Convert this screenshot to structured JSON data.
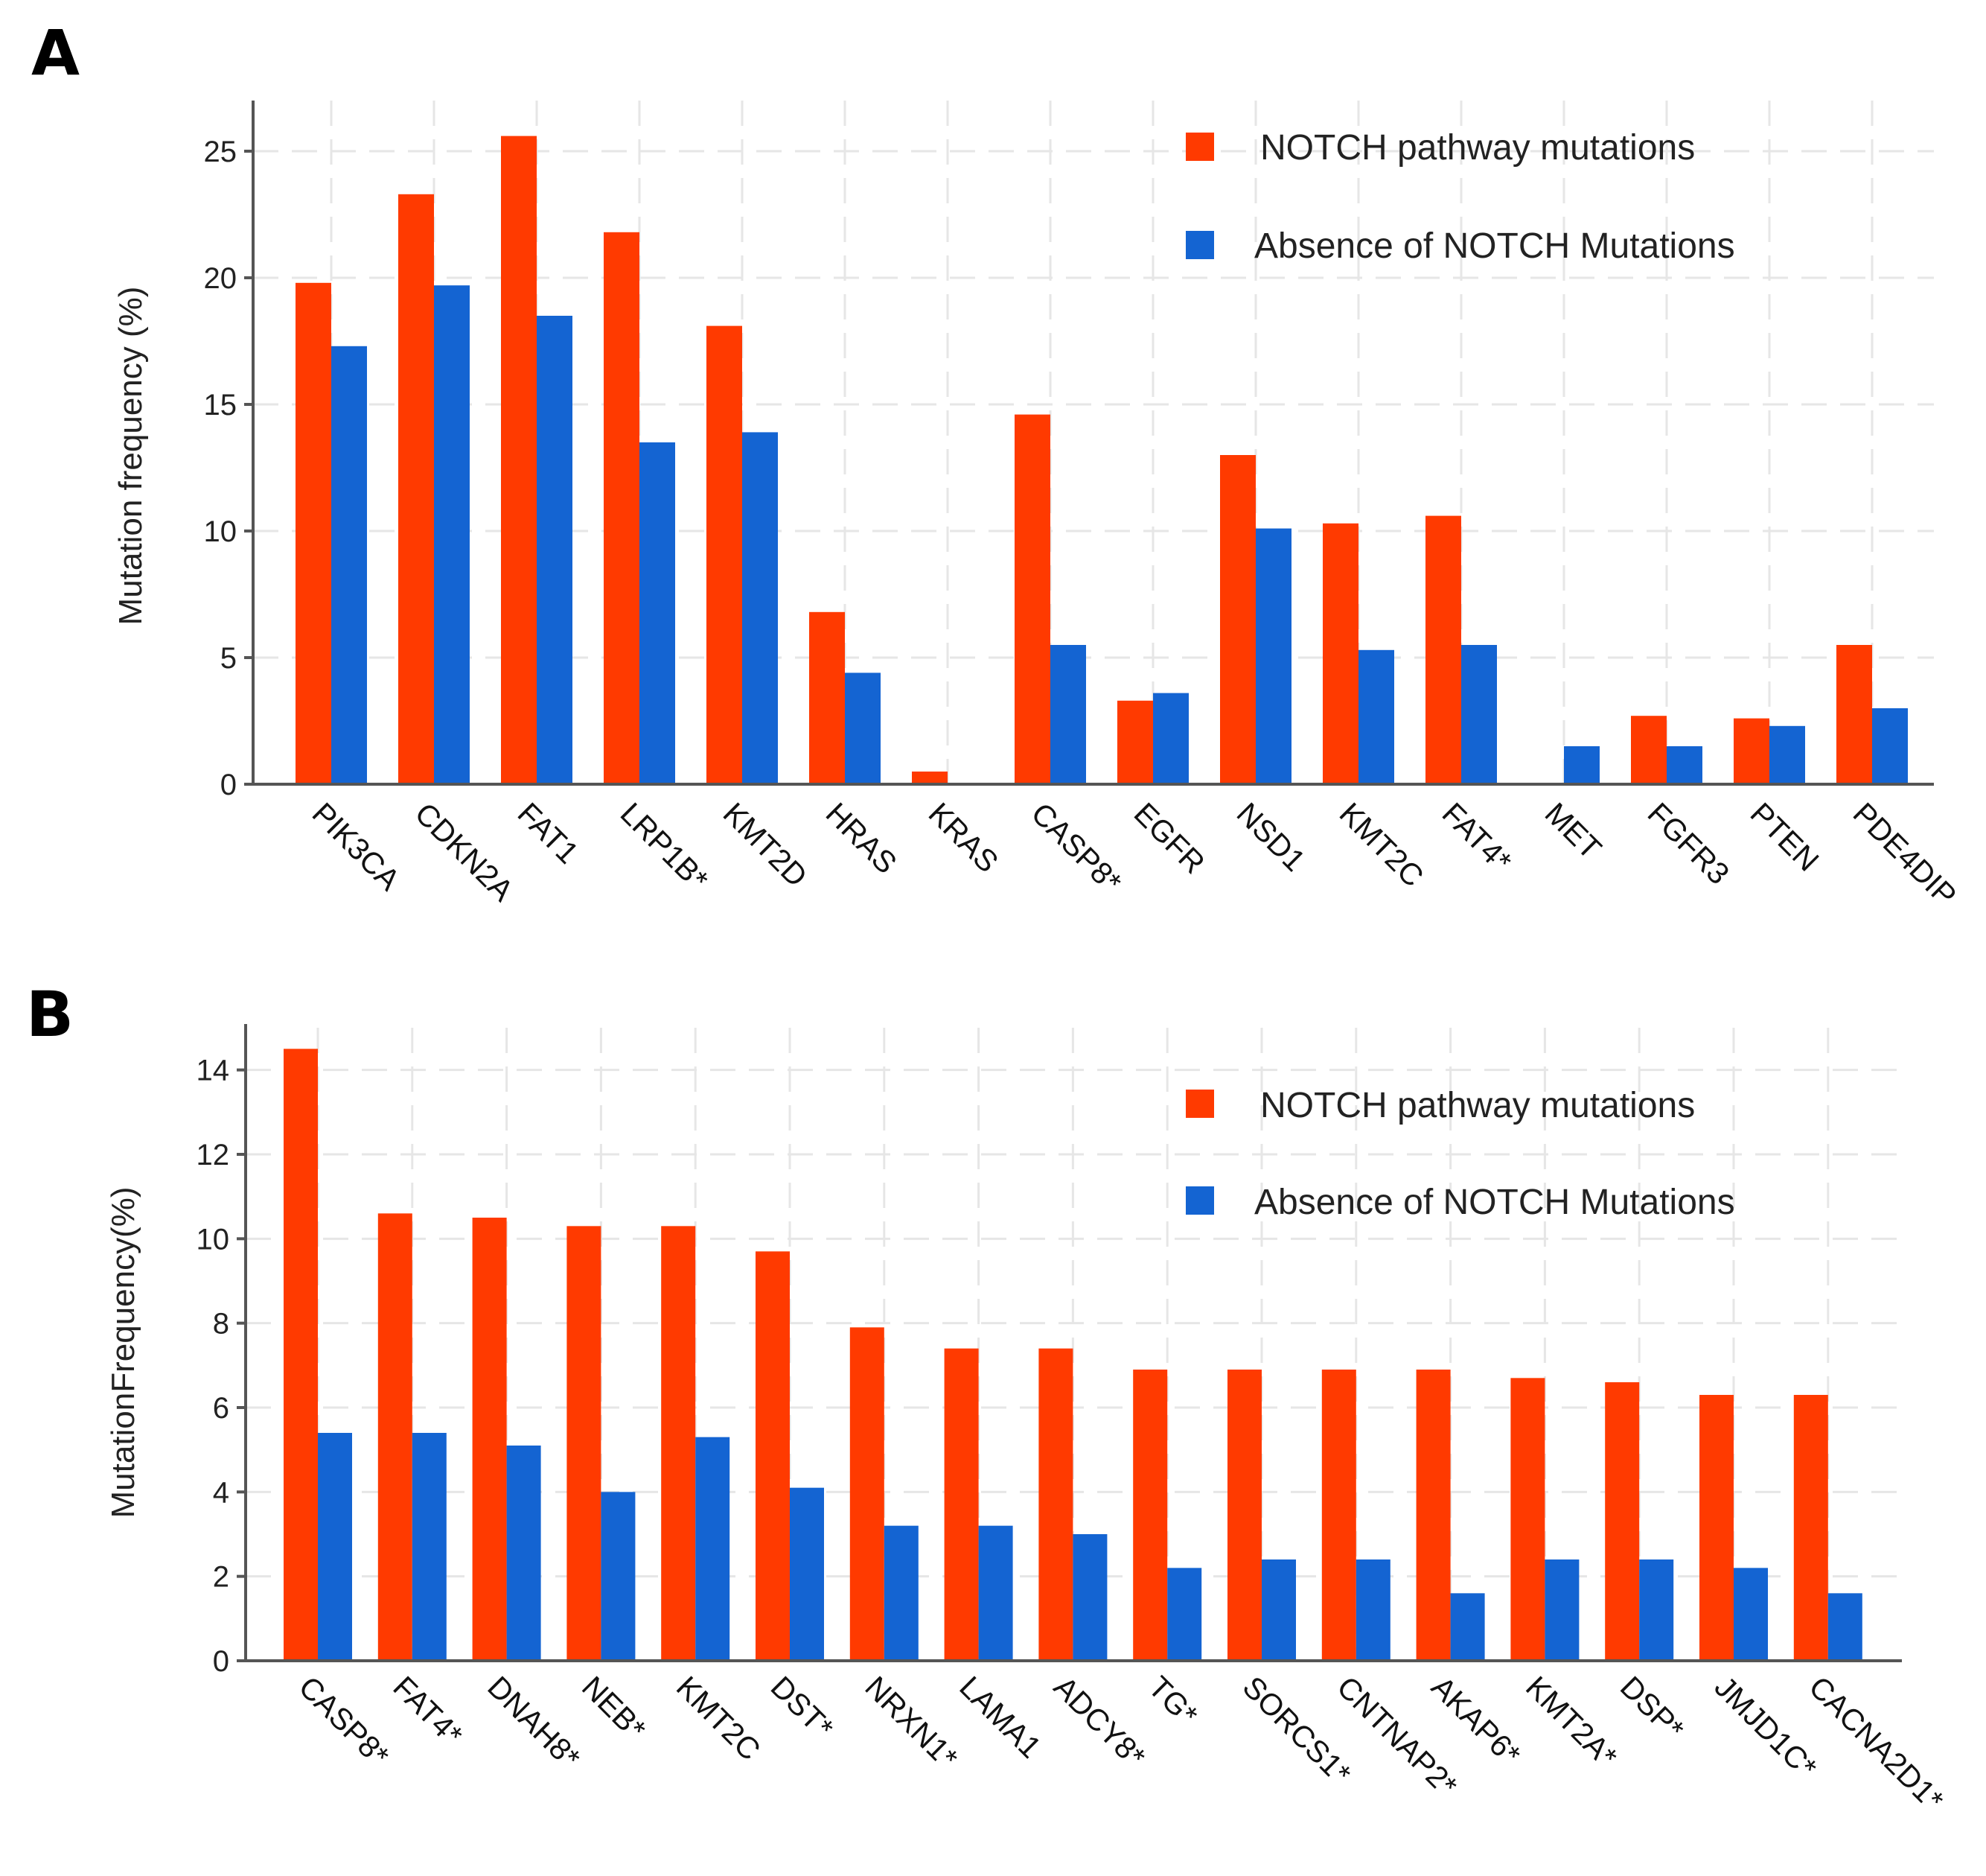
{
  "colors": {
    "notch": "#FF3A00",
    "absence": "#1464D2"
  },
  "chart_data": [
    {
      "panel": "A",
      "type": "bar",
      "ylabel": "Mutation frequency (%)",
      "xlabel": "",
      "ylim": [
        0,
        27
      ],
      "yticks": [
        0,
        5,
        10,
        15,
        20,
        25
      ],
      "grid": true,
      "legend_position": "top-right",
      "categories": [
        "PIK3CA",
        "CDKN2A",
        "FAT1",
        "LRP1B*",
        "KMT2D",
        "HRAS",
        "KRAS",
        "CASP8*",
        "EGFR",
        "NSD1",
        "KMT2C",
        "FAT4*",
        "MET",
        "FGFR3",
        "PTEN",
        "PDE4DIP"
      ],
      "series": [
        {
          "name": "NOTCH pathway mutations",
          "color": "#FF3A00",
          "values": [
            19.8,
            23.3,
            25.6,
            21.8,
            18.1,
            6.8,
            0.5,
            14.6,
            3.3,
            13.0,
            10.3,
            10.6,
            0.05,
            2.7,
            2.6,
            5.5
          ]
        },
        {
          "name": "Absence of NOTCH Mutations",
          "color": "#1464D2",
          "values": [
            17.3,
            19.7,
            18.5,
            13.5,
            13.9,
            4.4,
            0.05,
            5.5,
            3.6,
            10.1,
            5.3,
            5.5,
            1.5,
            1.5,
            2.3,
            3.0
          ]
        }
      ]
    },
    {
      "panel": "B",
      "type": "bar",
      "ylabel": "MutationFrequency(%)",
      "xlabel": "",
      "ylim": [
        0,
        15
      ],
      "yticks": [
        0,
        2,
        4,
        6,
        8,
        10,
        12,
        14
      ],
      "grid": true,
      "legend_position": "top-right",
      "categories": [
        "CASP8*",
        "FAT4*",
        "DNAH8*",
        "NEB*",
        "KMT2C",
        "DST*",
        "NRXN1*",
        "LAMA1",
        "ADCY8*",
        "TG*",
        "SORCS1*",
        "CNTNAP2*",
        "AKAP6*",
        "KMT2A*",
        "DSP*",
        "JMJD1C*",
        "CACNA2D1*"
      ],
      "series": [
        {
          "name": "NOTCH pathway mutations",
          "color": "#FF3A00",
          "values": [
            14.5,
            10.6,
            10.5,
            10.3,
            10.3,
            9.7,
            7.9,
            7.4,
            7.4,
            6.9,
            6.9,
            6.9,
            6.9,
            6.7,
            6.6,
            6.3,
            6.3
          ]
        },
        {
          "name": "Absence of NOTCH Mutations",
          "color": "#1464D2",
          "values": [
            5.4,
            5.4,
            5.1,
            4.0,
            5.3,
            4.1,
            3.2,
            3.2,
            3.0,
            2.2,
            2.4,
            2.4,
            1.6,
            2.4,
            2.4,
            2.2,
            1.6
          ]
        }
      ]
    }
  ]
}
